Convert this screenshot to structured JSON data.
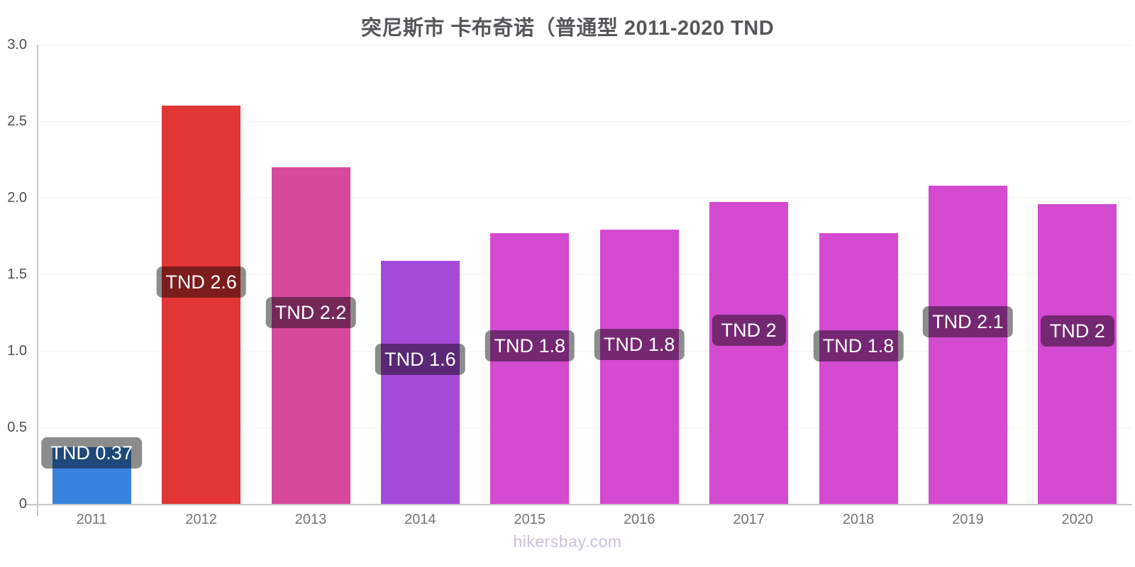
{
  "watermark": "hikersbay.com",
  "chart_data": {
    "type": "bar",
    "title": "突尼斯市 卡布奇诺（普通型 2011-2020 TND",
    "currency": "TND",
    "categories": [
      "2011",
      "2012",
      "2013",
      "2014",
      "2015",
      "2016",
      "2017",
      "2018",
      "2019",
      "2020"
    ],
    "values": [
      0.37,
      2.6,
      2.2,
      1.59,
      1.77,
      1.79,
      1.97,
      1.77,
      2.08,
      1.96
    ],
    "bar_labels": [
      "TND 0.37",
      "TND 2.6",
      "TND 2.2",
      "TND 1.6",
      "TND 1.8",
      "TND 1.8",
      "TND 2",
      "TND 1.8",
      "TND 2.1",
      "TND 2"
    ],
    "bar_colors": [
      "#3883dd",
      "#e23535",
      "#d64a9e",
      "#a44ad8",
      "#d44ad0",
      "#d44ad0",
      "#d44ad0",
      "#d44ad0",
      "#d44ad0",
      "#d44ad0"
    ],
    "label_bg_color": "rgba(0,0,0,0.45)",
    "label_text_color": "#ffffff",
    "ylim": [
      0,
      3.0
    ],
    "ytick_values": [
      3.0,
      2.5,
      2.0,
      1.5,
      1.0,
      0.5,
      0
    ],
    "ytick_labels": [
      "3.0",
      "2.5",
      "2.0",
      "1.5",
      "1.0",
      "0.5",
      "0"
    ],
    "xlabel": "",
    "ylabel": "",
    "grid": "horizontal-light",
    "legend": "none"
  }
}
